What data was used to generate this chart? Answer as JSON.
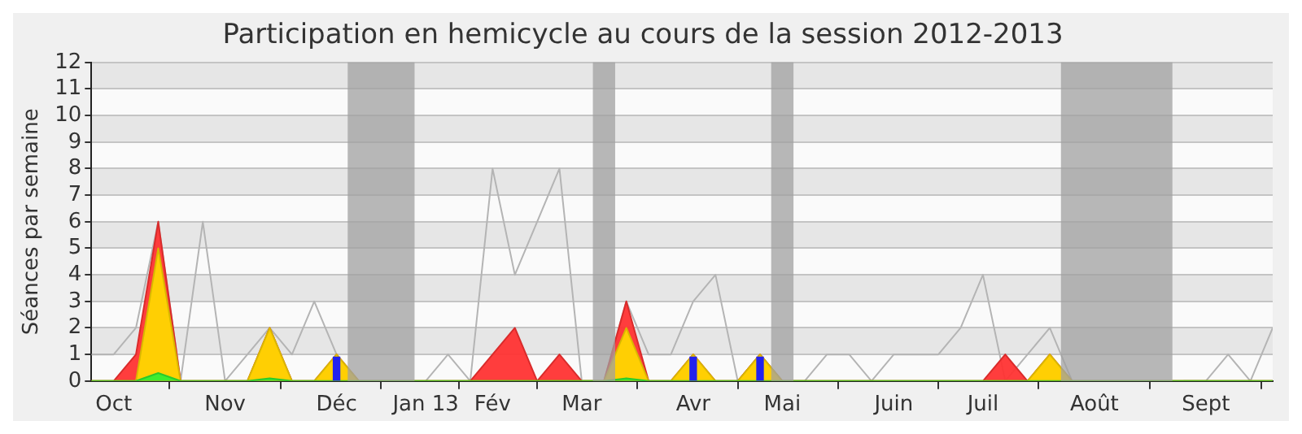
{
  "chart_data": {
    "type": "area",
    "title": "Participation en hemicycle au cours de la session 2012-2013",
    "ylabel": "Séances par semaine",
    "x": [
      "2012-09-30",
      "2012-10-07",
      "2012-10-14",
      "2012-10-21",
      "2012-10-28",
      "2012-11-04",
      "2012-11-11",
      "2012-11-18",
      "2012-11-25",
      "2012-12-02",
      "2012-12-09",
      "2012-12-16",
      "2012-12-23",
      "2012-12-30",
      "2013-01-06",
      "2013-01-13",
      "2013-01-20",
      "2013-01-27",
      "2013-02-03",
      "2013-02-10",
      "2013-02-17",
      "2013-02-24",
      "2013-03-03",
      "2013-03-10",
      "2013-03-17",
      "2013-03-24",
      "2013-03-31",
      "2013-04-07",
      "2013-04-14",
      "2013-04-21",
      "2013-04-28",
      "2013-05-05",
      "2013-05-12",
      "2013-05-19",
      "2013-05-26",
      "2013-06-02",
      "2013-06-09",
      "2013-06-16",
      "2013-06-23",
      "2013-06-30",
      "2013-07-07",
      "2013-07-14",
      "2013-07-21",
      "2013-07-28",
      "2013-08-04",
      "2013-08-11",
      "2013-08-18",
      "2013-08-25",
      "2013-09-01",
      "2013-09-08",
      "2013-09-15",
      "2013-09-22",
      "2013-09-29",
      "2013-10-06"
    ],
    "series": [
      {
        "type": "line",
        "color": "#b4b4b4",
        "values": [
          1,
          1,
          2,
          6,
          0,
          6,
          0,
          1,
          2,
          1,
          3,
          1,
          null,
          null,
          null,
          0,
          1,
          0,
          8,
          4,
          6,
          8,
          0,
          0,
          3,
          1,
          1,
          3,
          4,
          0,
          1,
          0,
          0,
          1,
          1,
          0,
          1,
          1,
          1,
          2,
          4,
          0,
          1,
          2,
          0,
          null,
          null,
          null,
          null,
          0,
          0,
          1,
          0,
          2
        ]
      },
      {
        "color": "#ff3333",
        "values": [
          0,
          0,
          1,
          6,
          0,
          0,
          0,
          0,
          2,
          0,
          0,
          1,
          0,
          0,
          0,
          0,
          0,
          0,
          1,
          2,
          0,
          1,
          0,
          0,
          3,
          0,
          0,
          1,
          0,
          0,
          1,
          0,
          0,
          0,
          0,
          0,
          0,
          0,
          0,
          0,
          0,
          1,
          0,
          1,
          0,
          0,
          0,
          0,
          0,
          0,
          0,
          0,
          0,
          0
        ]
      },
      {
        "color": "#ffd700",
        "values": [
          0,
          0,
          0,
          5,
          0,
          0,
          0,
          0,
          2,
          0,
          0,
          1,
          0,
          0,
          0,
          0,
          0,
          0,
          0,
          0,
          0,
          0,
          0,
          0,
          2,
          0,
          0,
          1,
          0,
          0,
          1,
          0,
          0,
          0,
          0,
          0,
          0,
          0,
          0,
          0,
          0,
          0,
          0,
          1,
          0,
          0,
          0,
          0,
          0,
          0,
          0,
          0,
          0,
          0
        ]
      },
      {
        "color": "#33ee33",
        "values": [
          0,
          0,
          0,
          0.3,
          0,
          0,
          0,
          0,
          0.1,
          0,
          0,
          0,
          0,
          0,
          0,
          0,
          0,
          0,
          0,
          0,
          0,
          0,
          0,
          0,
          0.1,
          0,
          0,
          0,
          0,
          0,
          0,
          0,
          0,
          0,
          0,
          0,
          0,
          0,
          0,
          0,
          0,
          0,
          0,
          0,
          0,
          0,
          0,
          0,
          0,
          0,
          0,
          0,
          0,
          0
        ]
      },
      {
        "type": "bar",
        "color": "#2222ee",
        "values": [
          null,
          null,
          null,
          null,
          null,
          null,
          null,
          null,
          null,
          null,
          null,
          0.9,
          null,
          null,
          null,
          null,
          null,
          null,
          null,
          null,
          null,
          null,
          null,
          null,
          null,
          null,
          null,
          0.9,
          null,
          null,
          0.9,
          null,
          null,
          null,
          null,
          null,
          null,
          null,
          null,
          null,
          null,
          null,
          null,
          null,
          null,
          null,
          null,
          null,
          null,
          null,
          null,
          null,
          null,
          null
        ]
      }
    ],
    "xlim": [
      "2012-09-30",
      "2013-10-06"
    ],
    "xticks": [
      {
        "value": "2012-10-07",
        "label": "Oct"
      },
      {
        "value": "2012-11-11",
        "label": "Nov"
      },
      {
        "value": "2012-12-16",
        "label": "Déc"
      },
      {
        "value": "2013-01-13",
        "label": "Jan 13"
      },
      {
        "value": "2013-02-03",
        "label": "Fév"
      },
      {
        "value": "2013-03-03",
        "label": "Mar"
      },
      {
        "value": "2013-04-07",
        "label": "Avr"
      },
      {
        "value": "2013-05-05",
        "label": "Mai"
      },
      {
        "value": "2013-06-09",
        "label": "Juin"
      },
      {
        "value": "2013-07-07",
        "label": "Juil"
      },
      {
        "value": "2013-08-11",
        "label": "Août"
      },
      {
        "value": "2013-09-15",
        "label": "Sept"
      }
    ],
    "ylim": [
      0,
      12
    ],
    "yticks": [
      0,
      1,
      2,
      3,
      4,
      5,
      6,
      7,
      8,
      9,
      10,
      11,
      12
    ],
    "bands": [
      {
        "axis": "x",
        "from": "2012-12-19T12:00",
        "to": "2013-01-09T12:00",
        "color": "#a0a0a0"
      },
      {
        "axis": "x",
        "from": "2013-03-06T12:00",
        "to": "2013-03-13T12:00",
        "color": "#a0a0a0"
      },
      {
        "axis": "x",
        "from": "2013-05-01T12:00",
        "to": "2013-05-08T12:00",
        "color": "#a0a0a0"
      },
      {
        "axis": "x",
        "from": "2013-07-31T12:00",
        "to": "2013-09-04T12:00",
        "color": "#a0a0a0"
      }
    ],
    "grid": "y",
    "legend": false,
    "marker": "none",
    "line_style": "solid"
  }
}
